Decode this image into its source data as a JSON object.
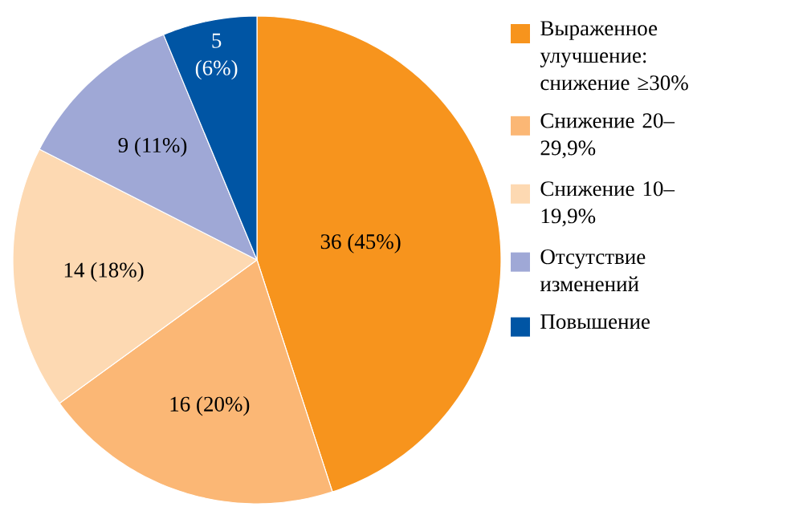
{
  "chart_data": {
    "type": "pie",
    "categories": [
      "Выраженное улучшение: снижение ≥30%",
      "Снижение 20–29,9%",
      "Снижение 10–19,9%",
      "Отсутствие изменений",
      "Повышение"
    ],
    "values": [
      36,
      16,
      14,
      9,
      5
    ],
    "value_labels": [
      "36 (45%)",
      "16 (20%)",
      "14 (18%)",
      "9 (11%)",
      "5 (6%)"
    ],
    "colors": [
      "#f7941d",
      "#fbb775",
      "#fdd9b2",
      "#9fa8d6",
      "#0055a4"
    ],
    "legend": "right"
  }
}
